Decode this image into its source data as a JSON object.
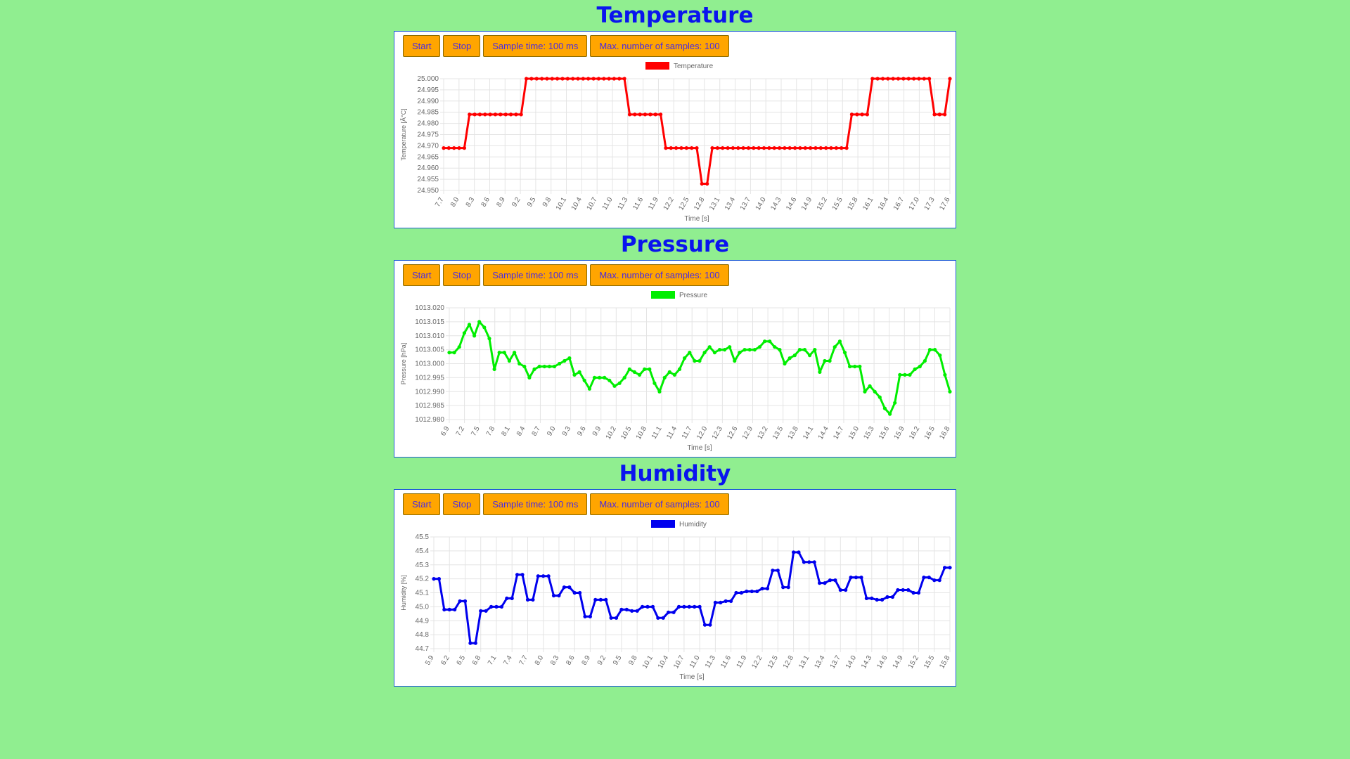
{
  "colors": {
    "background": "#90ee90",
    "title": "#0a14ee",
    "button": "#ffa500",
    "button_text": "#4b2be0",
    "panel_border": "#1e5bd6"
  },
  "sections": [
    {
      "title": "Temperature",
      "buttons": {
        "start": "Start",
        "stop": "Stop",
        "sample_time": "Sample time: 100 ms",
        "max_samples": "Max. number of samples: 100"
      }
    },
    {
      "title": "Pressure",
      "buttons": {
        "start": "Start",
        "stop": "Stop",
        "sample_time": "Sample time: 100 ms",
        "max_samples": "Max. number of samples: 100"
      }
    },
    {
      "title": "Humidity",
      "buttons": {
        "start": "Start",
        "stop": "Stop",
        "sample_time": "Sample time: 100 ms",
        "max_samples": "Max. number of samples: 100"
      }
    }
  ],
  "chart_data": [
    {
      "type": "line",
      "color": "#ff0000",
      "legend": "Temperature",
      "xlabel": "Time [s]",
      "ylabel": "Temperature [Â°C]",
      "ylim": [
        24.95,
        25.0
      ],
      "yticks": [
        "25.000",
        "24.995",
        "24.990",
        "24.985",
        "24.980",
        "24.975",
        "24.970",
        "24.965",
        "24.960",
        "24.955",
        "24.950"
      ],
      "xticks": [
        "7.7",
        "8.0",
        "8.3",
        "8.6",
        "8.9",
        "9.2",
        "9.5",
        "9.8",
        "10.1",
        "10.4",
        "10.7",
        "11.0",
        "11.3",
        "11.6",
        "11.9",
        "12.2",
        "12.5",
        "12.8",
        "13.1",
        "13.4",
        "13.7",
        "14.0",
        "14.3",
        "14.6",
        "14.9",
        "15.2",
        "15.5",
        "15.8",
        "16.1",
        "16.4",
        "16.7",
        "17.0",
        "17.3",
        "17.6"
      ],
      "series": [
        {
          "values": [
            24.969,
            24.969,
            24.969,
            24.969,
            24.969,
            24.984,
            24.984,
            24.984,
            24.984,
            24.984,
            24.984,
            24.984,
            24.984,
            24.984,
            24.984,
            24.984,
            25.0,
            25.0,
            25.0,
            25.0,
            25.0,
            25.0,
            25.0,
            25.0,
            25.0,
            25.0,
            25.0,
            25.0,
            25.0,
            25.0,
            25.0,
            25.0,
            25.0,
            25.0,
            25.0,
            25.0,
            24.984,
            24.984,
            24.984,
            24.984,
            24.984,
            24.984,
            24.984,
            24.969,
            24.969,
            24.969,
            24.969,
            24.969,
            24.969,
            24.969,
            24.953,
            24.953,
            24.969,
            24.969,
            24.969,
            24.969,
            24.969,
            24.969,
            24.969,
            24.969,
            24.969,
            24.969,
            24.969,
            24.969,
            24.969,
            24.969,
            24.969,
            24.969,
            24.969,
            24.969,
            24.969,
            24.969,
            24.969,
            24.969,
            24.969,
            24.969,
            24.969,
            24.969,
            24.969,
            24.984,
            24.984,
            24.984,
            24.984,
            25.0,
            25.0,
            25.0,
            25.0,
            25.0,
            25.0,
            25.0,
            25.0,
            25.0,
            25.0,
            25.0,
            25.0,
            24.984,
            24.984,
            24.984,
            25.0
          ]
        }
      ]
    },
    {
      "type": "line",
      "color": "#00ee00",
      "legend": "Pressure",
      "xlabel": "Time [s]",
      "ylabel": "Pressure [hPa]",
      "ylim": [
        1012.98,
        1013.02
      ],
      "yticks": [
        "1013.020",
        "1013.015",
        "1013.010",
        "1013.005",
        "1013.000",
        "1012.995",
        "1012.990",
        "1012.985",
        "1012.980"
      ],
      "xticks": [
        "6.9",
        "7.2",
        "7.5",
        "7.8",
        "8.1",
        "8.4",
        "8.7",
        "9.0",
        "9.3",
        "9.6",
        "9.9",
        "10.2",
        "10.5",
        "10.8",
        "11.1",
        "11.4",
        "11.7",
        "12.0",
        "12.3",
        "12.6",
        "12.9",
        "13.2",
        "13.5",
        "13.8",
        "14.1",
        "14.4",
        "14.7",
        "15.0",
        "15.3",
        "15.6",
        "15.9",
        "16.2",
        "16.5",
        "16.8"
      ],
      "series": [
        {
          "values": [
            1013.004,
            1013.004,
            1013.006,
            1013.011,
            1013.014,
            1013.01,
            1013.015,
            1013.013,
            1013.009,
            1012.998,
            1013.004,
            1013.004,
            1013.001,
            1013.004,
            1013.0,
            1012.999,
            1012.995,
            1012.998,
            1012.999,
            1012.999,
            1012.999,
            1012.999,
            1013.0,
            1013.001,
            1013.002,
            1012.996,
            1012.997,
            1012.994,
            1012.991,
            1012.995,
            1012.995,
            1012.995,
            1012.994,
            1012.992,
            1012.993,
            1012.995,
            1012.998,
            1012.997,
            1012.996,
            1012.998,
            1012.998,
            1012.993,
            1012.99,
            1012.995,
            1012.997,
            1012.996,
            1012.998,
            1013.002,
            1013.004,
            1013.001,
            1013.001,
            1013.004,
            1013.006,
            1013.004,
            1013.005,
            1013.005,
            1013.006,
            1013.001,
            1013.004,
            1013.005,
            1013.005,
            1013.005,
            1013.006,
            1013.008,
            1013.008,
            1013.006,
            1013.005,
            1013.0,
            1013.002,
            1013.003,
            1013.005,
            1013.005,
            1013.003,
            1013.005,
            1012.997,
            1013.001,
            1013.001,
            1013.006,
            1013.008,
            1013.004,
            1012.999,
            1012.999,
            1012.999,
            1012.99,
            1012.992,
            1012.99,
            1012.988,
            1012.984,
            1012.982,
            1012.986,
            1012.996,
            1012.996,
            1012.996,
            1012.998,
            1012.999,
            1013.001,
            1013.005,
            1013.005,
            1013.003,
            1012.996,
            1012.99
          ]
        }
      ]
    },
    {
      "type": "line",
      "color": "#0000ee",
      "legend": "Humidity",
      "xlabel": "Time [s]",
      "ylabel": "Humidity [%]",
      "ylim": [
        44.7,
        45.5
      ],
      "yticks": [
        "45.5",
        "45.4",
        "45.3",
        "45.2",
        "45.1",
        "45.0",
        "44.9",
        "44.8",
        "44.7"
      ],
      "xticks": [
        "5.9",
        "6.2",
        "6.5",
        "6.8",
        "7.1",
        "7.4",
        "7.7",
        "8.0",
        "8.3",
        "8.6",
        "8.9",
        "9.2",
        "9.5",
        "9.8",
        "10.1",
        "10.4",
        "10.7",
        "11.0",
        "11.3",
        "11.6",
        "11.9",
        "12.2",
        "12.5",
        "12.8",
        "13.1",
        "13.4",
        "13.7",
        "14.0",
        "14.3",
        "14.6",
        "14.9",
        "15.2",
        "15.5",
        "15.8"
      ],
      "series": [
        {
          "values": [
            45.2,
            45.2,
            44.98,
            44.98,
            44.98,
            45.04,
            45.04,
            44.74,
            44.74,
            44.97,
            44.97,
            45.0,
            45.0,
            45.0,
            45.06,
            45.06,
            45.23,
            45.23,
            45.05,
            45.05,
            45.22,
            45.22,
            45.22,
            45.08,
            45.08,
            45.14,
            45.14,
            45.1,
            45.1,
            44.93,
            44.93,
            45.05,
            45.05,
            45.05,
            44.92,
            44.92,
            44.98,
            44.98,
            44.97,
            44.97,
            45.0,
            45.0,
            45.0,
            44.92,
            44.92,
            44.96,
            44.96,
            45.0,
            45.0,
            45.0,
            45.0,
            45.0,
            44.87,
            44.87,
            45.03,
            45.03,
            45.04,
            45.04,
            45.1,
            45.1,
            45.11,
            45.11,
            45.11,
            45.13,
            45.13,
            45.26,
            45.26,
            45.14,
            45.14,
            45.39,
            45.39,
            45.32,
            45.32,
            45.32,
            45.17,
            45.17,
            45.19,
            45.19,
            45.12,
            45.12,
            45.21,
            45.21,
            45.21,
            45.06,
            45.06,
            45.05,
            45.05,
            45.07,
            45.07,
            45.12,
            45.12,
            45.12,
            45.1,
            45.1,
            45.21,
            45.21,
            45.19,
            45.19,
            45.28,
            45.28
          ]
        }
      ]
    }
  ]
}
